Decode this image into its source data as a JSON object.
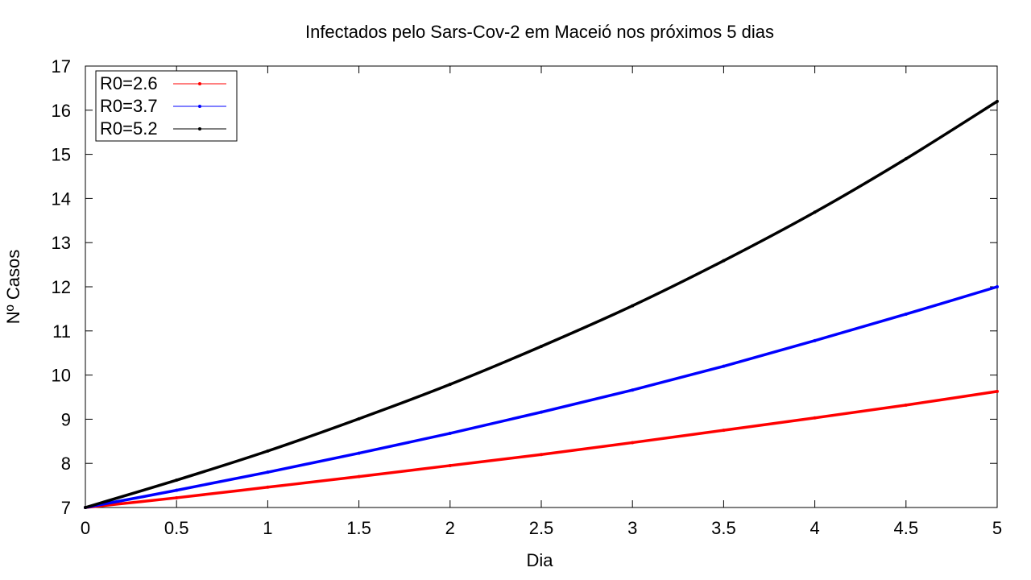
{
  "chart_data": {
    "type": "line",
    "title": "Infectados pelo Sars-Cov-2 em Maceió nos próximos 5 dias",
    "xlabel": "Dia",
    "ylabel": "Nº Casos",
    "xlim": [
      0,
      5
    ],
    "ylim": [
      7,
      17
    ],
    "xticks": [
      "0",
      "0.5",
      "1",
      "1.5",
      "2",
      "2.5",
      "3",
      "3.5",
      "4",
      "4.5",
      "5"
    ],
    "yticks": [
      "7",
      "8",
      "9",
      "10",
      "11",
      "12",
      "13",
      "14",
      "15",
      "16",
      "17"
    ],
    "grid": false,
    "legend_position": "top-left",
    "x": [
      0,
      0.5,
      1,
      1.5,
      2,
      2.5,
      3,
      3.5,
      4,
      4.5,
      5
    ],
    "series": [
      {
        "name": "R0=2.6",
        "color": "#ff0000",
        "values": [
          7.0,
          7.22,
          7.46,
          7.7,
          7.95,
          8.2,
          8.47,
          8.75,
          9.03,
          9.32,
          9.63
        ]
      },
      {
        "name": "R0=3.7",
        "color": "#0000ff",
        "values": [
          7.0,
          7.39,
          7.8,
          8.23,
          8.68,
          9.16,
          9.66,
          10.2,
          10.78,
          11.38,
          12.0
        ]
      },
      {
        "name": "R0=5.2",
        "color": "#000000",
        "values": [
          7.0,
          7.62,
          8.28,
          9.01,
          9.79,
          10.65,
          11.57,
          12.59,
          13.69,
          14.9,
          16.2
        ]
      }
    ]
  }
}
